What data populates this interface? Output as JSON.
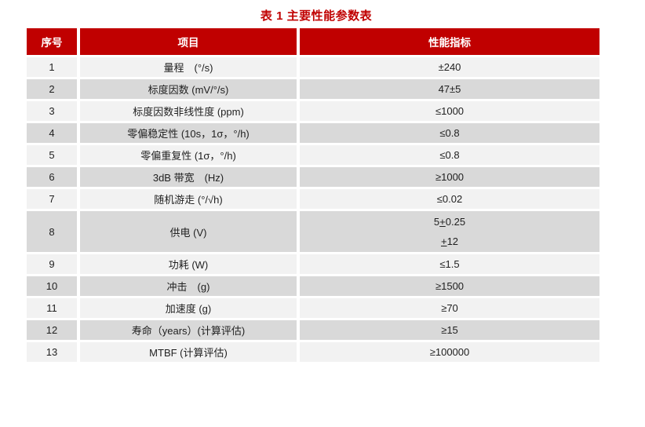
{
  "title": "表 1 主要性能参数表",
  "table": {
    "headers": [
      "序号",
      "项目",
      "性能指标"
    ],
    "rows": [
      {
        "no": "1",
        "item": "量程　(°/s)",
        "value": "±240"
      },
      {
        "no": "2",
        "item": "标度因数 (mV/°/s)",
        "value": "47±5"
      },
      {
        "no": "3",
        "item": "标度因数非线性度 (ppm)",
        "value": "≤1000"
      },
      {
        "no": "4",
        "item": "零偏稳定性 (10s，1σ，°/h)",
        "value": "≤0.8"
      },
      {
        "no": "5",
        "item": "零偏重复性 (1σ，°/h)",
        "value": "≤0.8"
      },
      {
        "no": "6",
        "item": "3dB 带宽　(Hz)",
        "value": "≥1000"
      },
      {
        "no": "7",
        "item": "随机游走 (°/√h)",
        "value": "≤0.02"
      },
      {
        "no": "8",
        "item": "供电 (V)",
        "value_lines": [
          "5+0.25",
          "+12"
        ],
        "underline_plus": true
      },
      {
        "no": "9",
        "item": "功耗 (W)",
        "value": "≤1.5"
      },
      {
        "no": "10",
        "item": "冲击　(g)",
        "value": "≥1500"
      },
      {
        "no": "11",
        "item": "加速度 (g)",
        "value": "≥70"
      },
      {
        "no": "12",
        "item": "寿命（years）(计算评估)",
        "value": "≥15"
      },
      {
        "no": "13",
        "item": "MTBF (计算评估)",
        "value": "≥100000"
      }
    ],
    "colors": {
      "header_bg": "#C00000",
      "header_text": "#FFFFFF",
      "row_light": "#F2F2F2",
      "row_dark": "#D9D9D9",
      "title_color": "#C00000",
      "body_text": "#1F1F1F"
    }
  }
}
